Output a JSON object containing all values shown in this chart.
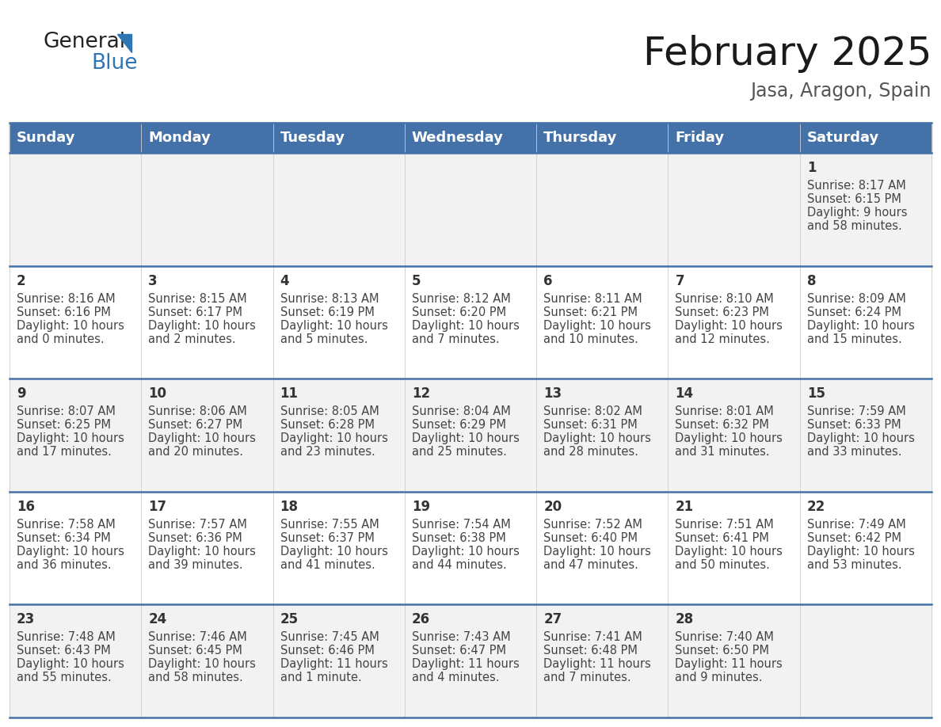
{
  "title": "February 2025",
  "subtitle": "Jasa, Aragon, Spain",
  "days_of_week": [
    "Sunday",
    "Monday",
    "Tuesday",
    "Wednesday",
    "Thursday",
    "Friday",
    "Saturday"
  ],
  "header_bg": "#4472A8",
  "header_text": "#FFFFFF",
  "row_bg_odd": "#F2F2F2",
  "row_bg_even": "#FFFFFF",
  "border_color": "#4472A8",
  "day_number_color": "#333333",
  "cell_text_color": "#444444",
  "title_color": "#1a1a1a",
  "subtitle_color": "#555555",
  "calendar_data": {
    "1": {
      "sunrise": "8:17 AM",
      "sunset": "6:15 PM",
      "daylight": "9 hours",
      "daylight2": "and 58 minutes."
    },
    "2": {
      "sunrise": "8:16 AM",
      "sunset": "6:16 PM",
      "daylight": "10 hours",
      "daylight2": "and 0 minutes."
    },
    "3": {
      "sunrise": "8:15 AM",
      "sunset": "6:17 PM",
      "daylight": "10 hours",
      "daylight2": "and 2 minutes."
    },
    "4": {
      "sunrise": "8:13 AM",
      "sunset": "6:19 PM",
      "daylight": "10 hours",
      "daylight2": "and 5 minutes."
    },
    "5": {
      "sunrise": "8:12 AM",
      "sunset": "6:20 PM",
      "daylight": "10 hours",
      "daylight2": "and 7 minutes."
    },
    "6": {
      "sunrise": "8:11 AM",
      "sunset": "6:21 PM",
      "daylight": "10 hours",
      "daylight2": "and 10 minutes."
    },
    "7": {
      "sunrise": "8:10 AM",
      "sunset": "6:23 PM",
      "daylight": "10 hours",
      "daylight2": "and 12 minutes."
    },
    "8": {
      "sunrise": "8:09 AM",
      "sunset": "6:24 PM",
      "daylight": "10 hours",
      "daylight2": "and 15 minutes."
    },
    "9": {
      "sunrise": "8:07 AM",
      "sunset": "6:25 PM",
      "daylight": "10 hours",
      "daylight2": "and 17 minutes."
    },
    "10": {
      "sunrise": "8:06 AM",
      "sunset": "6:27 PM",
      "daylight": "10 hours",
      "daylight2": "and 20 minutes."
    },
    "11": {
      "sunrise": "8:05 AM",
      "sunset": "6:28 PM",
      "daylight": "10 hours",
      "daylight2": "and 23 minutes."
    },
    "12": {
      "sunrise": "8:04 AM",
      "sunset": "6:29 PM",
      "daylight": "10 hours",
      "daylight2": "and 25 minutes."
    },
    "13": {
      "sunrise": "8:02 AM",
      "sunset": "6:31 PM",
      "daylight": "10 hours",
      "daylight2": "and 28 minutes."
    },
    "14": {
      "sunrise": "8:01 AM",
      "sunset": "6:32 PM",
      "daylight": "10 hours",
      "daylight2": "and 31 minutes."
    },
    "15": {
      "sunrise": "7:59 AM",
      "sunset": "6:33 PM",
      "daylight": "10 hours",
      "daylight2": "and 33 minutes."
    },
    "16": {
      "sunrise": "7:58 AM",
      "sunset": "6:34 PM",
      "daylight": "10 hours",
      "daylight2": "and 36 minutes."
    },
    "17": {
      "sunrise": "7:57 AM",
      "sunset": "6:36 PM",
      "daylight": "10 hours",
      "daylight2": "and 39 minutes."
    },
    "18": {
      "sunrise": "7:55 AM",
      "sunset": "6:37 PM",
      "daylight": "10 hours",
      "daylight2": "and 41 minutes."
    },
    "19": {
      "sunrise": "7:54 AM",
      "sunset": "6:38 PM",
      "daylight": "10 hours",
      "daylight2": "and 44 minutes."
    },
    "20": {
      "sunrise": "7:52 AM",
      "sunset": "6:40 PM",
      "daylight": "10 hours",
      "daylight2": "and 47 minutes."
    },
    "21": {
      "sunrise": "7:51 AM",
      "sunset": "6:41 PM",
      "daylight": "10 hours",
      "daylight2": "and 50 minutes."
    },
    "22": {
      "sunrise": "7:49 AM",
      "sunset": "6:42 PM",
      "daylight": "10 hours",
      "daylight2": "and 53 minutes."
    },
    "23": {
      "sunrise": "7:48 AM",
      "sunset": "6:43 PM",
      "daylight": "10 hours",
      "daylight2": "and 55 minutes."
    },
    "24": {
      "sunrise": "7:46 AM",
      "sunset": "6:45 PM",
      "daylight": "10 hours",
      "daylight2": "and 58 minutes."
    },
    "25": {
      "sunrise": "7:45 AM",
      "sunset": "6:46 PM",
      "daylight": "11 hours",
      "daylight2": "and 1 minute."
    },
    "26": {
      "sunrise": "7:43 AM",
      "sunset": "6:47 PM",
      "daylight": "11 hours",
      "daylight2": "and 4 minutes."
    },
    "27": {
      "sunrise": "7:41 AM",
      "sunset": "6:48 PM",
      "daylight": "11 hours",
      "daylight2": "and 7 minutes."
    },
    "28": {
      "sunrise": "7:40 AM",
      "sunset": "6:50 PM",
      "daylight": "11 hours",
      "daylight2": "and 9 minutes."
    }
  },
  "week_layout": [
    [
      null,
      null,
      null,
      null,
      null,
      null,
      1
    ],
    [
      2,
      3,
      4,
      5,
      6,
      7,
      8
    ],
    [
      9,
      10,
      11,
      12,
      13,
      14,
      15
    ],
    [
      16,
      17,
      18,
      19,
      20,
      21,
      22
    ],
    [
      23,
      24,
      25,
      26,
      27,
      28,
      null
    ]
  ],
  "fig_width": 11.88,
  "fig_height": 9.18,
  "dpi": 100
}
